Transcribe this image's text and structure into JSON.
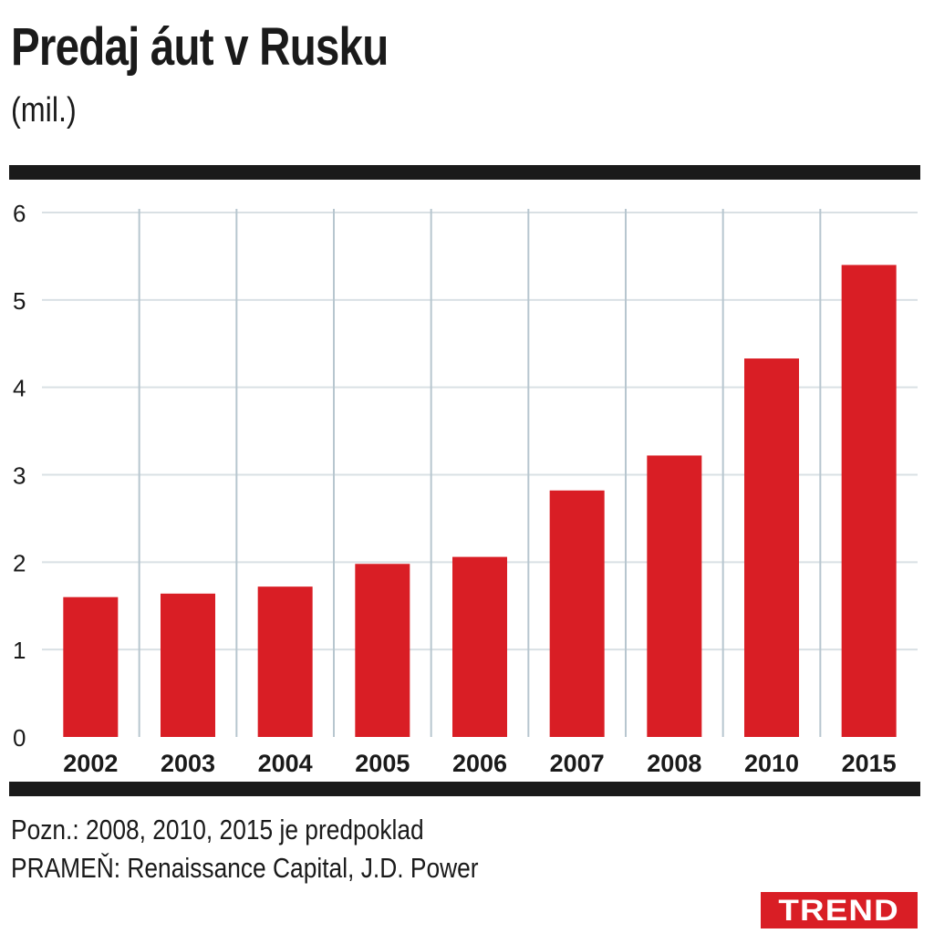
{
  "header": {
    "title": "Predaj áut v Rusku",
    "unit": "(mil.)"
  },
  "chart_data": {
    "type": "bar",
    "categories": [
      "2002",
      "2003",
      "2004",
      "2005",
      "2006",
      "2007",
      "2008",
      "2010",
      "2015"
    ],
    "values": [
      1.6,
      1.64,
      1.72,
      1.98,
      2.06,
      2.82,
      3.22,
      4.33,
      5.4
    ],
    "ylim": [
      0,
      6
    ],
    "yticks": [
      "0",
      "1",
      "2",
      "3",
      "4",
      "5",
      "6"
    ],
    "grid": true,
    "bar_color": "#d91e25"
  },
  "footer": {
    "note": "Pozn.: 2008, 2010, 2015 je predpoklad",
    "source": "PRAMEŇ: Renaissance Capital, J.D. Power",
    "logo": "TREND"
  }
}
